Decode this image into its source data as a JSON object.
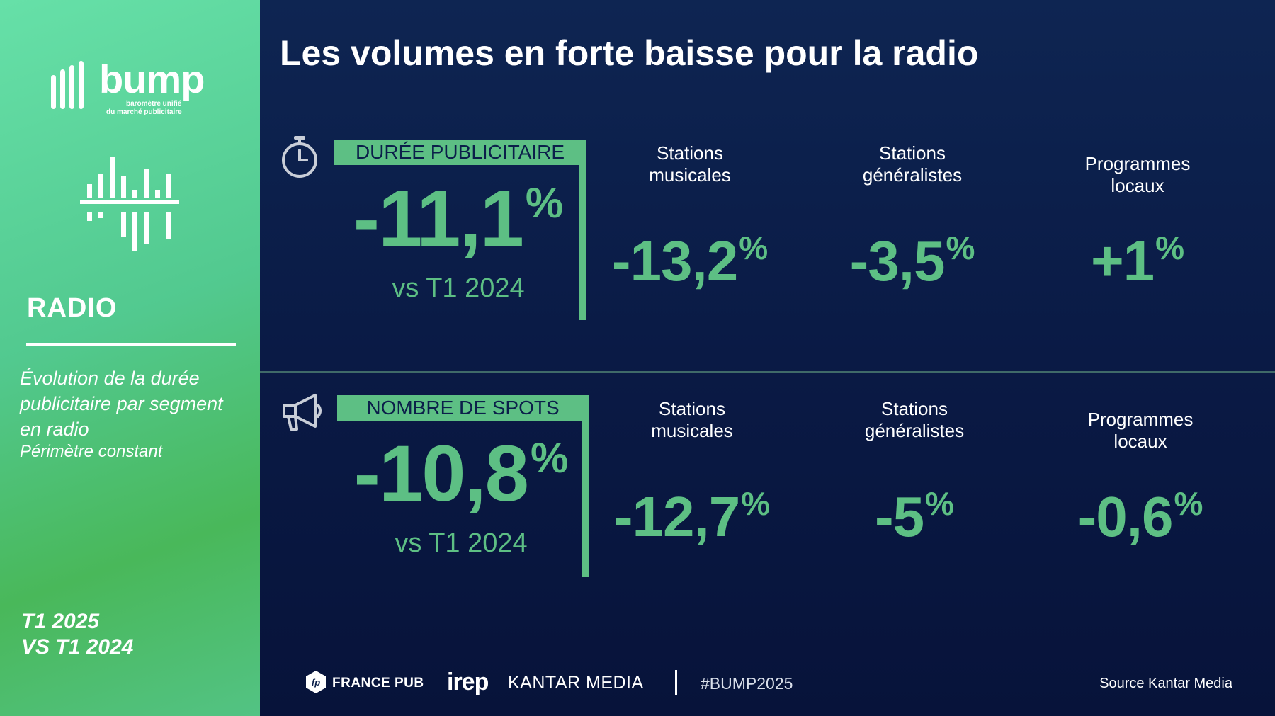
{
  "sidebar": {
    "logo_text": "bump",
    "logo_sub1": "baromètre unifié",
    "logo_sub2": "du marché publicitaire",
    "section_title": "RADIO",
    "description": "Évolution de la durée publicitaire par segment en radio",
    "description_2": "Périmètre constant",
    "period_line1": "T1 2025",
    "period_line2": "VS T1 2024"
  },
  "main": {
    "title": "Les volumes en forte baisse pour la radio",
    "sections": [
      {
        "icon": "stopwatch-icon",
        "label": "DURÉE PUBLICITAIRE",
        "total_value": "-11,1",
        "total_unit": "%",
        "comparison": "vs T1 2024",
        "columns": [
          {
            "header_line1": "Stations",
            "header_line2": "musicales",
            "value": "-13,2",
            "unit": "%"
          },
          {
            "header_line1": "Stations",
            "header_line2": "généralistes",
            "value": "-3,5",
            "unit": "%"
          },
          {
            "header_line1": "Programmes",
            "header_line2": "locaux",
            "value": "+1",
            "unit": "%"
          }
        ]
      },
      {
        "icon": "megaphone-icon",
        "label": "NOMBRE DE SPOTS",
        "total_value": "-10,8",
        "total_unit": "%",
        "comparison": "vs T1 2024",
        "columns": [
          {
            "header_line1": "Stations",
            "header_line2": "musicales",
            "value": "-12,7",
            "unit": "%"
          },
          {
            "header_line1": "Stations",
            "header_line2": "généralistes",
            "value": "-5",
            "unit": "%"
          },
          {
            "header_line1": "Programmes",
            "header_line2": "locaux",
            "value": "-0,6",
            "unit": "%"
          }
        ]
      }
    ]
  },
  "footer": {
    "partner1": "FRANCE PUB",
    "partner1_icon": "fp-icon",
    "partner2": "irep",
    "partner3": "KANTAR MEDIA",
    "hashtag": "#BUMP2025",
    "source": "Source Kantar Media"
  },
  "colors": {
    "accent_green": "#5dbf84",
    "navy": "#0b1f4a",
    "sidebar_green": "#52c98f"
  }
}
